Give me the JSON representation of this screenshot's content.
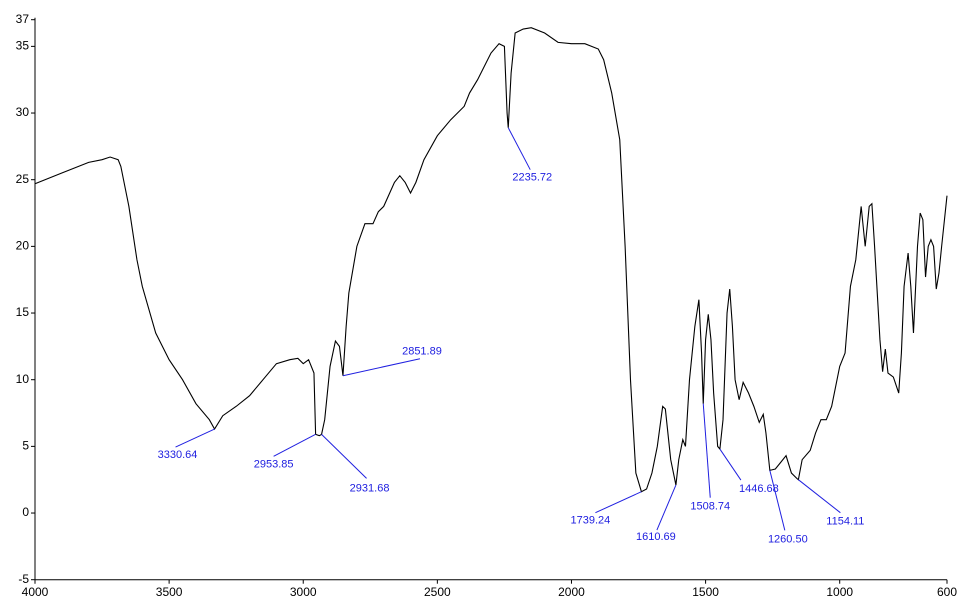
{
  "chart_data": {
    "type": "line",
    "x": [
      4000,
      3900,
      3800,
      3750,
      3720,
      3690,
      3680,
      3650,
      3620,
      3600,
      3550,
      3500,
      3450,
      3400,
      3350,
      3330.64,
      3300,
      3250,
      3200,
      3150,
      3100,
      3050,
      3020,
      3000,
      2980,
      2960,
      2953.85,
      2940,
      2931.68,
      2920,
      2900,
      2880,
      2865,
      2851.89,
      2840,
      2830,
      2800,
      2770,
      2740,
      2720,
      2700,
      2660,
      2640,
      2620,
      2600,
      2580,
      2550,
      2500,
      2450,
      2400,
      2380,
      2350,
      2300,
      2270,
      2250,
      2240,
      2235.72,
      2225,
      2210,
      2180,
      2150,
      2100,
      2050,
      2000,
      1950,
      1900,
      1880,
      1850,
      1820,
      1800,
      1780,
      1760,
      1739.24,
      1720,
      1700,
      1680,
      1660,
      1650,
      1630,
      1610.69,
      1600,
      1585,
      1575,
      1560,
      1540,
      1525,
      1515,
      1508.74,
      1500,
      1490,
      1480,
      1470,
      1455,
      1446.68,
      1435,
      1420,
      1410,
      1400,
      1390,
      1375,
      1360,
      1340,
      1320,
      1300,
      1285,
      1275,
      1260.5,
      1240,
      1220,
      1200,
      1180,
      1160,
      1154.11,
      1140,
      1110,
      1090,
      1070,
      1050,
      1030,
      1000,
      980,
      960,
      940,
      920,
      905,
      890,
      880,
      870,
      850,
      840,
      830,
      820,
      800,
      780,
      770,
      760,
      745,
      735,
      725,
      710,
      700,
      690,
      680,
      670,
      660,
      650,
      640,
      630,
      620,
      600
    ],
    "series": [
      {
        "color": "#000000",
        "values": [
          24.7,
          25.5,
          26.3,
          26.5,
          26.7,
          26.5,
          26,
          23,
          19,
          17,
          13.5,
          11.5,
          10,
          8.2,
          7,
          6.3,
          7.3,
          8,
          8.8,
          10,
          11.2,
          11.5,
          11.6,
          11.2,
          11.5,
          10.5,
          5.9,
          5.8,
          5.9,
          7,
          11,
          12.9,
          12.5,
          10.3,
          14,
          16.5,
          20,
          21.7,
          21.7,
          22.6,
          23,
          24.8,
          25.3,
          24.8,
          24,
          24.8,
          26.5,
          28.3,
          29.5,
          30.5,
          31.5,
          32.5,
          34.5,
          35.2,
          35,
          30,
          28.9,
          33,
          36,
          36.3,
          36.4,
          36,
          35.3,
          35.2,
          35.2,
          34.8,
          34,
          31.5,
          28,
          20,
          10,
          3,
          1.6,
          1.8,
          3,
          5,
          8,
          7.8,
          4,
          2.1,
          4,
          5.5,
          5,
          10,
          14,
          16,
          12,
          8.2,
          13,
          14.9,
          13,
          9,
          5,
          4.8,
          7,
          15,
          16.8,
          14,
          10,
          8.5,
          9.8,
          9,
          8,
          6.8,
          7.4,
          6,
          3.2,
          3.3,
          3.8,
          4.3,
          3,
          2.6,
          2.5,
          4,
          4.7,
          6,
          7,
          7,
          8,
          11,
          12,
          17,
          19,
          23,
          20,
          23,
          23.2,
          20,
          13,
          10.6,
          12.3,
          10.5,
          10.2,
          9,
          12,
          17,
          19.5,
          17,
          13.5,
          20,
          22.5,
          22,
          17.7,
          20,
          20.5,
          20,
          16.8,
          18,
          20,
          23.8
        ]
      }
    ],
    "xlim": [
      4000,
      600
    ],
    "ylim": [
      -5,
      37
    ],
    "xticks": [
      4000,
      3500,
      3000,
      2500,
      2000,
      1500,
      1000,
      600
    ],
    "yticks": [
      -5,
      0,
      5,
      10,
      15,
      20,
      25,
      30,
      35,
      37
    ],
    "annotations": [
      {
        "label": "3330.64",
        "x": 3330.64,
        "y": 6.3
      },
      {
        "label": "2953.85",
        "x": 2953.85,
        "y": 5.9
      },
      {
        "label": "2931.68",
        "x": 2931.68,
        "y": 5.9
      },
      {
        "label": "2851.89",
        "x": 2851.89,
        "y": 10.3
      },
      {
        "label": "2235.72",
        "x": 2235.72,
        "y": 28.9
      },
      {
        "label": "1739.24",
        "x": 1739.24,
        "y": 1.6
      },
      {
        "label": "1610.69",
        "x": 1610.69,
        "y": 2.1
      },
      {
        "label": "1508.74",
        "x": 1508.74,
        "y": 8.2
      },
      {
        "label": "1446.68",
        "x": 1446.68,
        "y": 4.8
      },
      {
        "label": "1260.50",
        "x": 1260.5,
        "y": 3.2
      },
      {
        "label": "1154.11",
        "x": 1154.11,
        "y": 2.5
      }
    ]
  }
}
